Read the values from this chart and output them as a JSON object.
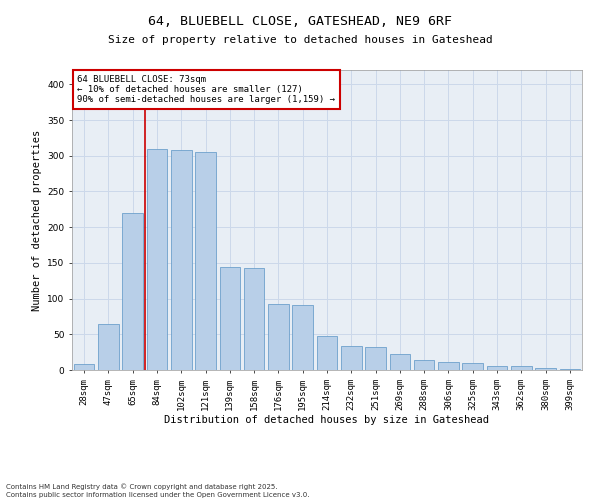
{
  "title_line1": "64, BLUEBELL CLOSE, GATESHEAD, NE9 6RF",
  "title_line2": "Size of property relative to detached houses in Gateshead",
  "xlabel": "Distribution of detached houses by size in Gateshead",
  "ylabel": "Number of detached properties",
  "categories": [
    "28sqm",
    "47sqm",
    "65sqm",
    "84sqm",
    "102sqm",
    "121sqm",
    "139sqm",
    "158sqm",
    "176sqm",
    "195sqm",
    "214sqm",
    "232sqm",
    "251sqm",
    "269sqm",
    "288sqm",
    "306sqm",
    "325sqm",
    "343sqm",
    "362sqm",
    "380sqm",
    "399sqm"
  ],
  "values": [
    9,
    65,
    220,
    310,
    308,
    305,
    144,
    143,
    92,
    91,
    48,
    33,
    32,
    22,
    14,
    11,
    10,
    5,
    5,
    3,
    2
  ],
  "bar_color": "#b8cfe8",
  "bar_edge_color": "#6da0cc",
  "annotation_text_line1": "64 BLUEBELL CLOSE: 73sqm",
  "annotation_text_line2": "← 10% of detached houses are smaller (127)",
  "annotation_text_line3": "90% of semi-detached houses are larger (1,159) →",
  "annotation_box_facecolor": "#ffffff",
  "annotation_box_edgecolor": "#cc0000",
  "vline_color": "#cc0000",
  "vline_x": 2.5,
  "footer_line1": "Contains HM Land Registry data © Crown copyright and database right 2025.",
  "footer_line2": "Contains public sector information licensed under the Open Government Licence v3.0.",
  "ylim": [
    0,
    420
  ],
  "yticks": [
    0,
    50,
    100,
    150,
    200,
    250,
    300,
    350,
    400
  ],
  "grid_color": "#ccd8ea",
  "bg_color": "#e8eef5",
  "title1_fontsize": 9.5,
  "title2_fontsize": 8.0,
  "axis_label_fontsize": 7.5,
  "tick_fontsize": 6.5,
  "annotation_fontsize": 6.5,
  "footer_fontsize": 5.0
}
